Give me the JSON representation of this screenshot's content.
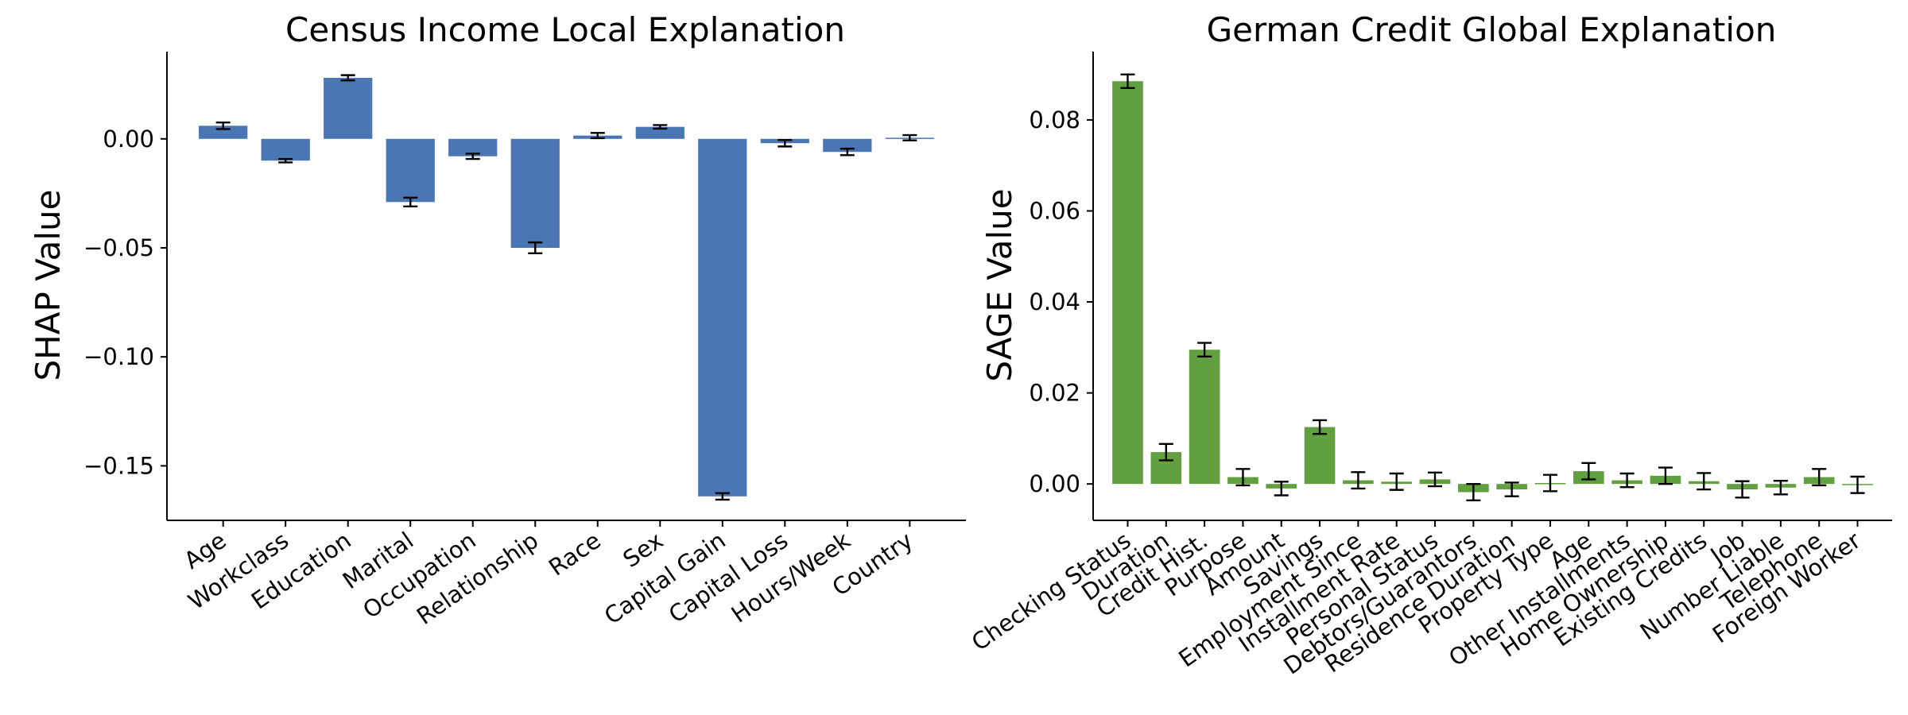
{
  "chart_data": [
    {
      "type": "bar",
      "title": "Census Income Local Explanation",
      "xlabel": "",
      "ylabel": "SHAP Value",
      "color": "#4a77b4",
      "ylim": [
        -0.175,
        0.04
      ],
      "yticks": [
        0.0,
        -0.05,
        -0.1,
        -0.15
      ],
      "ytick_labels": [
        "0.00",
        "−0.05",
        "−0.10",
        "−0.15"
      ],
      "grid": false,
      "categories": [
        "Age",
        "Workclass",
        "Education",
        "Marital",
        "Occupation",
        "Relationship",
        "Race",
        "Sex",
        "Capital Gain",
        "Capital Loss",
        "Hours/Week",
        "Country"
      ],
      "values": [
        0.006,
        -0.01,
        0.028,
        -0.029,
        -0.008,
        -0.05,
        0.0015,
        0.0055,
        -0.164,
        -0.002,
        -0.006,
        0.0005
      ],
      "errors": [
        0.0015,
        0.0008,
        0.0012,
        0.002,
        0.0012,
        0.0025,
        0.0012,
        0.0008,
        0.0015,
        0.0015,
        0.0015,
        0.0012
      ]
    },
    {
      "type": "bar",
      "title": "German Credit Global Explanation",
      "xlabel": "",
      "ylabel": "SAGE Value",
      "color": "#60a03e",
      "ylim": [
        -0.008,
        0.095
      ],
      "yticks": [
        0.0,
        0.02,
        0.04,
        0.06,
        0.08
      ],
      "ytick_labels": [
        "0.00",
        "0.02",
        "0.04",
        "0.06",
        "0.08"
      ],
      "grid": false,
      "categories": [
        "Checking Status",
        "Duration",
        "Credit Hist.",
        "Purpose",
        "Amount",
        "Savings",
        "Employment Since",
        "Installment Rate",
        "Personal Status",
        "Debtors/Guarantors",
        "Residence Duration",
        "Property Type",
        "Age",
        "Other Installments",
        "Home Ownership",
        "Existing Credits",
        "Job",
        "Number Liable",
        "Telephone",
        "Foreign Worker"
      ],
      "values": [
        0.0885,
        0.007,
        0.0295,
        0.0015,
        -0.001,
        0.0125,
        0.0008,
        0.0005,
        0.001,
        -0.0018,
        -0.0012,
        0.0002,
        0.0028,
        0.0008,
        0.0018,
        0.0006,
        -0.0012,
        -0.0008,
        0.0015,
        -0.0002
      ],
      "errors": [
        0.0015,
        0.0018,
        0.0015,
        0.0018,
        0.0015,
        0.0015,
        0.0018,
        0.0018,
        0.0015,
        0.0018,
        0.0015,
        0.0018,
        0.0018,
        0.0015,
        0.0018,
        0.0018,
        0.0018,
        0.0015,
        0.0018,
        0.0018
      ]
    }
  ]
}
